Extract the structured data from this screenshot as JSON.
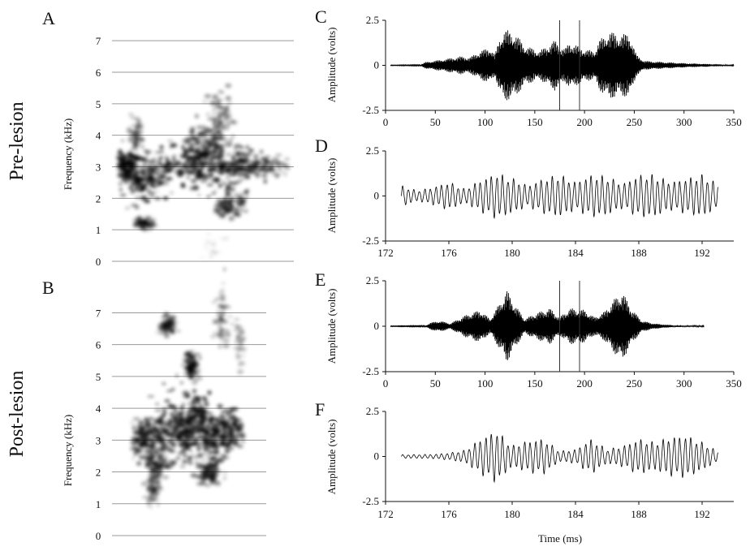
{
  "figure": {
    "side_labels": [
      "Pre-lesion",
      "Post-lesion"
    ]
  },
  "chart_data": [
    {
      "id": "A",
      "type": "heatmap",
      "panel_letter": "A",
      "ylabel": "Frequency (kHz)",
      "y_ticks": [
        0,
        1,
        2,
        3,
        4,
        5,
        6,
        7
      ],
      "ylim": [
        0,
        7.7
      ],
      "grid": true,
      "colormap": "grayscale (dark = high energy)",
      "energy_blobs": [
        {
          "t": 0.05,
          "f": 3.0,
          "sf": 0.25,
          "st": 0.05,
          "w": 0.9
        },
        {
          "t": 0.15,
          "f": 2.5,
          "sf": 0.3,
          "st": 0.07,
          "w": 0.9
        },
        {
          "t": 0.35,
          "f": 3.1,
          "sf": 0.3,
          "st": 0.15,
          "w": 1.0
        },
        {
          "t": 0.55,
          "f": 3.0,
          "sf": 0.4,
          "st": 0.12,
          "w": 1.0
        },
        {
          "t": 0.5,
          "f": 3.7,
          "sf": 0.3,
          "st": 0.06,
          "w": 0.8
        },
        {
          "t": 0.75,
          "f": 3.1,
          "sf": 0.25,
          "st": 0.12,
          "w": 0.8
        },
        {
          "t": 0.6,
          "f": 4.6,
          "sf": 0.5,
          "st": 0.04,
          "w": 0.6
        },
        {
          "t": 0.65,
          "f": 1.8,
          "sf": 0.2,
          "st": 0.05,
          "w": 0.7
        },
        {
          "t": 0.15,
          "f": 1.2,
          "sf": 0.1,
          "st": 0.03,
          "w": 0.6
        },
        {
          "t": 0.9,
          "f": 3.0,
          "sf": 0.12,
          "st": 0.08,
          "w": 0.5
        },
        {
          "t": 0.1,
          "f": 4.0,
          "sf": 0.25,
          "st": 0.02,
          "w": 0.45
        },
        {
          "t": 0.55,
          "f": 0.5,
          "sf": 0.4,
          "st": 0.03,
          "w": 0.15
        }
      ]
    },
    {
      "id": "B",
      "type": "heatmap",
      "panel_letter": "B",
      "ylabel": "Frequency (kHz)",
      "y_ticks": [
        0,
        1,
        2,
        3,
        4,
        5,
        6,
        7
      ],
      "ylim": [
        0,
        7.7
      ],
      "grid": true,
      "colormap": "grayscale (dark = high energy)",
      "energy_blobs": [
        {
          "t": 0.08,
          "f": 3.0,
          "sf": 0.3,
          "st": 0.05,
          "w": 0.8
        },
        {
          "t": 0.2,
          "f": 2.5,
          "sf": 0.5,
          "st": 0.05,
          "w": 0.8
        },
        {
          "t": 0.3,
          "f": 3.4,
          "sf": 0.6,
          "st": 0.08,
          "w": 0.9
        },
        {
          "t": 0.45,
          "f": 3.2,
          "sf": 0.35,
          "st": 0.06,
          "w": 0.9
        },
        {
          "t": 0.55,
          "f": 3.6,
          "sf": 0.4,
          "st": 0.07,
          "w": 1.0
        },
        {
          "t": 0.7,
          "f": 3.1,
          "sf": 0.35,
          "st": 0.07,
          "w": 0.9
        },
        {
          "t": 0.82,
          "f": 3.3,
          "sf": 0.3,
          "st": 0.05,
          "w": 0.8
        },
        {
          "t": 0.65,
          "f": 2.0,
          "sf": 0.2,
          "st": 0.05,
          "w": 0.7
        },
        {
          "t": 0.5,
          "f": 5.3,
          "sf": 0.2,
          "st": 0.03,
          "w": 0.7
        },
        {
          "t": 0.3,
          "f": 6.6,
          "sf": 0.15,
          "st": 0.03,
          "w": 0.6
        },
        {
          "t": 0.75,
          "f": 6.8,
          "sf": 0.5,
          "st": 0.03,
          "w": 0.45
        },
        {
          "t": 0.9,
          "f": 6.0,
          "sf": 0.4,
          "st": 0.02,
          "w": 0.35
        },
        {
          "t": 0.18,
          "f": 1.5,
          "sf": 0.3,
          "st": 0.03,
          "w": 0.5
        }
      ]
    },
    {
      "id": "C",
      "type": "line",
      "panel_letter": "C",
      "ylabel": "Amplitude (volts)",
      "xlabel": "",
      "x_ticks": [
        0,
        50,
        100,
        150,
        200,
        250,
        300,
        350
      ],
      "y_ticks": [
        2.5,
        0,
        -2.5
      ],
      "xlim": [
        0,
        350
      ],
      "ylim": [
        -2.5,
        2.5
      ],
      "markers_x": [
        175,
        195
      ],
      "signal_range": [
        5,
        350
      ],
      "carrier_period": 0.33,
      "envelope": [
        [
          5,
          0.01
        ],
        [
          35,
          0.02
        ],
        [
          40,
          0.18
        ],
        [
          60,
          0.35
        ],
        [
          75,
          0.5
        ],
        [
          85,
          0.45
        ],
        [
          95,
          0.8
        ],
        [
          105,
          1.0
        ],
        [
          110,
          0.6
        ],
        [
          115,
          1.6
        ],
        [
          120,
          2.0
        ],
        [
          130,
          1.8
        ],
        [
          140,
          1.1
        ],
        [
          155,
          0.8
        ],
        [
          170,
          1.4
        ],
        [
          180,
          0.9
        ],
        [
          185,
          1.3
        ],
        [
          200,
          0.9
        ],
        [
          210,
          0.8
        ],
        [
          215,
          1.4
        ],
        [
          225,
          1.9
        ],
        [
          235,
          1.7
        ],
        [
          245,
          1.8
        ],
        [
          252,
          0.6
        ],
        [
          260,
          0.25
        ],
        [
          300,
          0.12
        ],
        [
          330,
          0.06
        ],
        [
          345,
          0.03
        ],
        [
          350,
          0.02
        ]
      ]
    },
    {
      "id": "D",
      "type": "line",
      "panel_letter": "D",
      "ylabel": "Amplitude (volts)",
      "xlabel": "",
      "x_ticks": [
        172,
        176,
        180,
        184,
        188,
        192
      ],
      "y_ticks": [
        2.5,
        0,
        -2.5
      ],
      "xlim": [
        172,
        194
      ],
      "ylim": [
        -2.5,
        2.5
      ],
      "signal_range": [
        173,
        193
      ],
      "carrier_period": 0.35,
      "envelope": [
        [
          173,
          0.6
        ],
        [
          174,
          0.3
        ],
        [
          175,
          0.5
        ],
        [
          176,
          0.8
        ],
        [
          177,
          0.4
        ],
        [
          178,
          0.9
        ],
        [
          179,
          1.3
        ],
        [
          180,
          1.0
        ],
        [
          181,
          0.6
        ],
        [
          182,
          1.0
        ],
        [
          183,
          1.2
        ],
        [
          184,
          0.8
        ],
        [
          185,
          1.2
        ],
        [
          186,
          1.1
        ],
        [
          187,
          0.7
        ],
        [
          188,
          1.2
        ],
        [
          189,
          1.2
        ],
        [
          190,
          0.8
        ],
        [
          191,
          1.0
        ],
        [
          192,
          1.2
        ],
        [
          193,
          0.7
        ]
      ]
    },
    {
      "id": "E",
      "type": "line",
      "panel_letter": "E",
      "ylabel": "Amplitude (volts)",
      "xlabel": "",
      "x_ticks": [
        0,
        50,
        100,
        150,
        200,
        250,
        300,
        350
      ],
      "y_ticks": [
        2.5,
        0,
        -2.5
      ],
      "xlim": [
        0,
        350
      ],
      "ylim": [
        -2.5,
        2.5
      ],
      "markers_x": [
        175,
        195
      ],
      "signal_range": [
        5,
        320
      ],
      "carrier_period": 0.33,
      "envelope": [
        [
          5,
          0.01
        ],
        [
          40,
          0.02
        ],
        [
          45,
          0.2
        ],
        [
          55,
          0.3
        ],
        [
          65,
          0.15
        ],
        [
          80,
          0.6
        ],
        [
          95,
          0.9
        ],
        [
          105,
          0.4
        ],
        [
          115,
          1.3
        ],
        [
          122,
          2.0
        ],
        [
          130,
          1.2
        ],
        [
          140,
          0.4
        ],
        [
          150,
          0.7
        ],
        [
          165,
          1.0
        ],
        [
          175,
          0.5
        ],
        [
          185,
          1.0
        ],
        [
          200,
          0.9
        ],
        [
          210,
          0.5
        ],
        [
          220,
          0.8
        ],
        [
          230,
          1.5
        ],
        [
          238,
          1.9
        ],
        [
          248,
          0.9
        ],
        [
          258,
          0.3
        ],
        [
          270,
          0.15
        ],
        [
          290,
          0.04
        ],
        [
          320,
          0.02
        ]
      ]
    },
    {
      "id": "F",
      "type": "line",
      "panel_letter": "F",
      "ylabel": "Amplitude (volts)",
      "xlabel": "Time (ms)",
      "x_ticks": [
        172,
        176,
        180,
        184,
        188,
        192
      ],
      "y_ticks": [
        2.5,
        0,
        -2.5
      ],
      "xlim": [
        172,
        194
      ],
      "ylim": [
        -2.5,
        2.5
      ],
      "signal_range": [
        173,
        193
      ],
      "carrier_period": 0.35,
      "envelope": [
        [
          173,
          0.1
        ],
        [
          175,
          0.12
        ],
        [
          176,
          0.2
        ],
        [
          177,
          0.35
        ],
        [
          178,
          1.0
        ],
        [
          179,
          1.5
        ],
        [
          180,
          0.6
        ],
        [
          181,
          0.9
        ],
        [
          182,
          1.0
        ],
        [
          183,
          0.3
        ],
        [
          184,
          0.4
        ],
        [
          185,
          1.0
        ],
        [
          186,
          0.4
        ],
        [
          187,
          0.6
        ],
        [
          188,
          1.0
        ],
        [
          189,
          0.8
        ],
        [
          190,
          1.1
        ],
        [
          191,
          1.2
        ],
        [
          192,
          0.8
        ],
        [
          193,
          0.3
        ]
      ]
    }
  ]
}
